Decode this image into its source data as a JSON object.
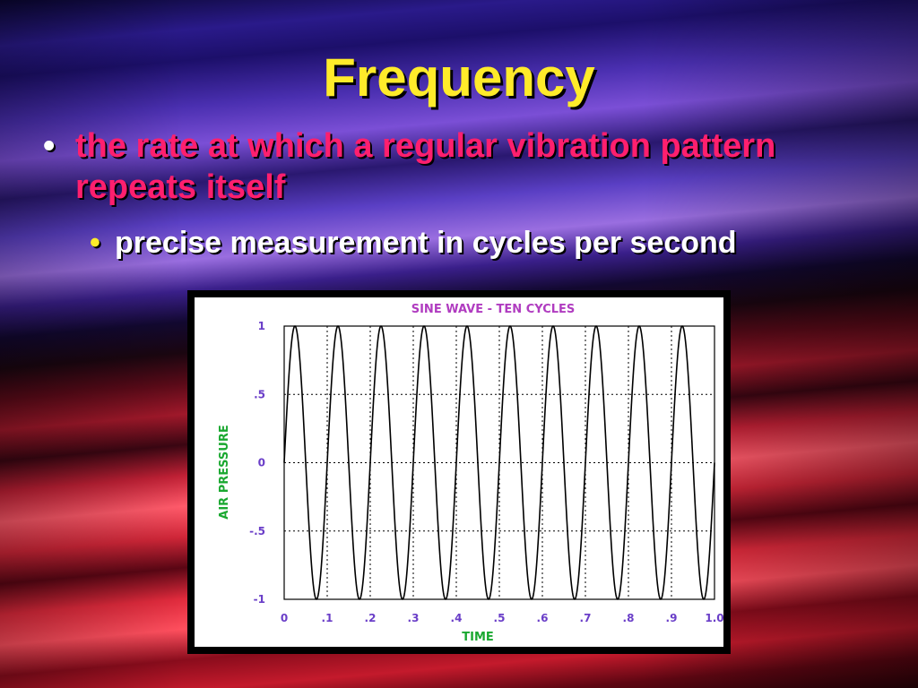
{
  "slide": {
    "title": "Frequency",
    "bullet1": "the rate at which a regular vibration pattern repeats itself",
    "bullet2": "precise measurement in cycles per second",
    "bullet_symbol": "•"
  },
  "colors": {
    "title": "#ffeb2a",
    "bullet1": "#ff1f6e",
    "bullet2": "#ffffff",
    "chart_title": "#b03cc0",
    "axis_label": "#1aa830",
    "tick_label": "#6a3ec8"
  },
  "chart_data": {
    "type": "line",
    "title": "SINE WAVE - TEN CYCLES",
    "xlabel": "TIME",
    "ylabel": "AIR PRESSURE",
    "xlim": [
      0,
      1.0
    ],
    "ylim": [
      -1,
      1
    ],
    "x_ticks": [
      0,
      0.1,
      0.2,
      0.3,
      0.4,
      0.5,
      0.6,
      0.7,
      0.8,
      0.9,
      1.0
    ],
    "x_tick_labels": [
      "0",
      ".1",
      ".2",
      ".3",
      ".4",
      ".5",
      ".6",
      ".7",
      ".8",
      ".9",
      "1.0"
    ],
    "y_ticks": [
      1,
      0.5,
      0,
      -0.5,
      -1
    ],
    "y_tick_labels": [
      "1",
      ".5",
      "0",
      "-.5",
      "-1"
    ],
    "gridlines": "dotted",
    "series": [
      {
        "function": "sine",
        "cycles": 10,
        "amplitude": 1
      }
    ]
  }
}
